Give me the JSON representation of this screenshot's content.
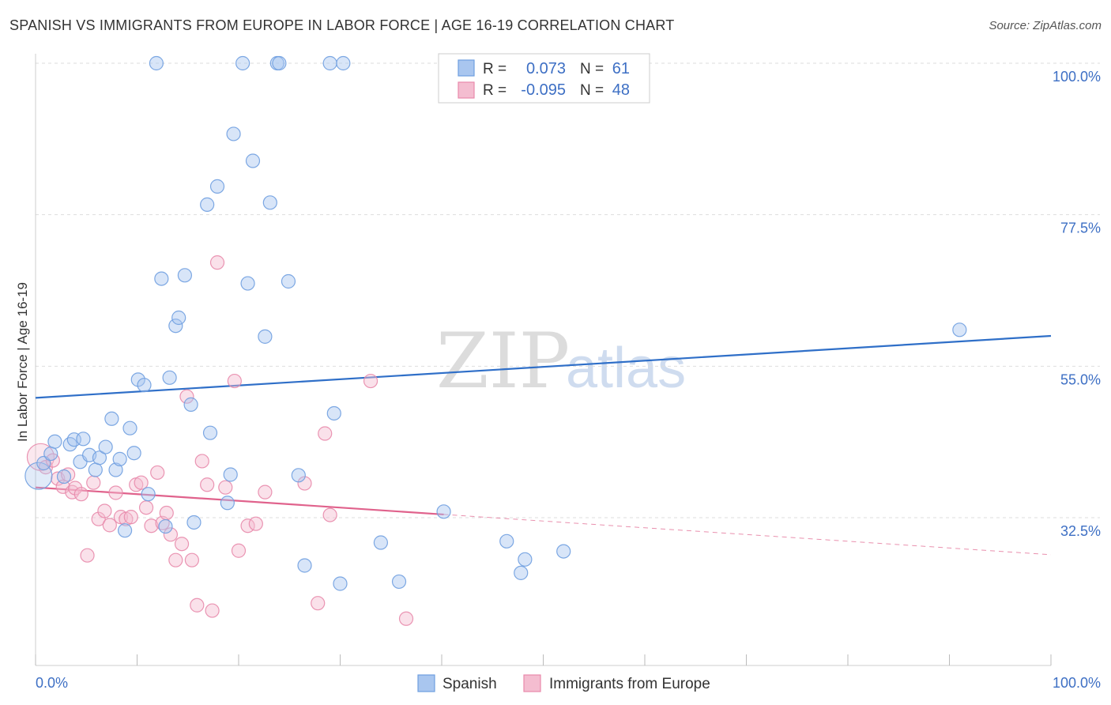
{
  "title": "SPANISH VS IMMIGRANTS FROM EUROPE IN LABOR FORCE | AGE 16-19 CORRELATION CHART",
  "source": "Source: ZipAtlas.com",
  "watermark": {
    "zip": "ZIP",
    "atlas": "atlas"
  },
  "colors": {
    "blue": "#6f9fe0",
    "blue_fill": "#a9c6ef",
    "blue_line": "#2f6fc8",
    "pink": "#e889ab",
    "pink_fill": "#f4bdd0",
    "pink_line": "#e0628c",
    "grid": "#dddddd",
    "tick_text": "#3d6fc4"
  },
  "legend": {
    "r_label": "R =",
    "n_label": "N =",
    "series": [
      {
        "r": "0.073",
        "n": "61"
      },
      {
        "r": "-0.095",
        "n": "48"
      }
    ]
  },
  "bottom_legend": [
    "Spanish",
    "Immigrants from Europe"
  ],
  "chart_data": {
    "type": "scatter",
    "title": "SPANISH VS IMMIGRANTS FROM EUROPE IN LABOR FORCE | AGE 16-19 CORRELATION CHART",
    "xlabel": "",
    "ylabel": "In Labor Force | Age 16-19",
    "xlim": [
      0,
      100
    ],
    "ylim": [
      12,
      102
    ],
    "x_tick_labels": [
      "0.0%",
      "100.0%"
    ],
    "y_ticks": [
      32.5,
      55.0,
      77.5,
      100.0
    ],
    "y_tick_labels": [
      "32.5%",
      "55.0%",
      "77.5%",
      "100.0%"
    ],
    "grid": true,
    "legend_position": "top-center",
    "series": [
      {
        "name": "Spanish",
        "r": 0.073,
        "n": 61,
        "trend": {
          "x": [
            0,
            100
          ],
          "y": [
            50.3,
            59.5
          ]
        },
        "points": [
          {
            "x": 0.3,
            "y": 38.7,
            "big": true
          },
          {
            "x": 0.8,
            "y": 40.6
          },
          {
            "x": 1.5,
            "y": 42.0
          },
          {
            "x": 1.9,
            "y": 43.8
          },
          {
            "x": 2.8,
            "y": 38.6
          },
          {
            "x": 3.4,
            "y": 43.4
          },
          {
            "x": 3.8,
            "y": 44.1
          },
          {
            "x": 4.4,
            "y": 40.8
          },
          {
            "x": 4.7,
            "y": 44.2
          },
          {
            "x": 5.3,
            "y": 41.8
          },
          {
            "x": 5.9,
            "y": 39.6
          },
          {
            "x": 6.3,
            "y": 41.4
          },
          {
            "x": 6.9,
            "y": 43.0
          },
          {
            "x": 7.5,
            "y": 47.2
          },
          {
            "x": 7.9,
            "y": 39.6
          },
          {
            "x": 8.3,
            "y": 41.2
          },
          {
            "x": 8.8,
            "y": 30.6
          },
          {
            "x": 9.3,
            "y": 45.8
          },
          {
            "x": 9.7,
            "y": 42.1
          },
          {
            "x": 10.1,
            "y": 53.0
          },
          {
            "x": 10.7,
            "y": 52.2
          },
          {
            "x": 11.1,
            "y": 36.0
          },
          {
            "x": 11.9,
            "y": 100.0
          },
          {
            "x": 12.4,
            "y": 68.0
          },
          {
            "x": 12.8,
            "y": 31.2
          },
          {
            "x": 13.2,
            "y": 53.3
          },
          {
            "x": 13.8,
            "y": 61.0
          },
          {
            "x": 14.1,
            "y": 62.2
          },
          {
            "x": 14.7,
            "y": 68.5
          },
          {
            "x": 15.3,
            "y": 49.3
          },
          {
            "x": 15.6,
            "y": 31.8
          },
          {
            "x": 16.9,
            "y": 79.0
          },
          {
            "x": 17.2,
            "y": 45.1
          },
          {
            "x": 17.9,
            "y": 81.7
          },
          {
            "x": 18.9,
            "y": 34.7
          },
          {
            "x": 19.2,
            "y": 38.9
          },
          {
            "x": 19.5,
            "y": 89.5
          },
          {
            "x": 20.4,
            "y": 100.0
          },
          {
            "x": 20.9,
            "y": 67.3
          },
          {
            "x": 21.4,
            "y": 85.5
          },
          {
            "x": 22.6,
            "y": 59.4
          },
          {
            "x": 23.1,
            "y": 79.3
          },
          {
            "x": 23.8,
            "y": 100.0
          },
          {
            "x": 24.0,
            "y": 100.0
          },
          {
            "x": 24.9,
            "y": 67.6
          },
          {
            "x": 25.9,
            "y": 38.8
          },
          {
            "x": 26.5,
            "y": 25.4
          },
          {
            "x": 29.0,
            "y": 100.0
          },
          {
            "x": 29.4,
            "y": 48.0
          },
          {
            "x": 30.0,
            "y": 22.7
          },
          {
            "x": 30.3,
            "y": 100.0
          },
          {
            "x": 34.0,
            "y": 28.8
          },
          {
            "x": 35.8,
            "y": 23.0
          },
          {
            "x": 40.2,
            "y": 33.4
          },
          {
            "x": 46.4,
            "y": 29.0
          },
          {
            "x": 47.8,
            "y": 24.3
          },
          {
            "x": 48.2,
            "y": 26.3
          },
          {
            "x": 52.0,
            "y": 27.5
          },
          {
            "x": 91.0,
            "y": 60.4
          }
        ]
      },
      {
        "name": "Immigrants from Europe",
        "r": -0.095,
        "n": 48,
        "trend": {
          "x": [
            0,
            100
          ],
          "y": [
            37.0,
            27.0
          ],
          "solid_until_x": 40.2
        },
        "points": [
          {
            "x": 0.5,
            "y": 41.5,
            "big": true
          },
          {
            "x": 1.0,
            "y": 40.0
          },
          {
            "x": 1.7,
            "y": 41.0
          },
          {
            "x": 2.2,
            "y": 38.3
          },
          {
            "x": 2.7,
            "y": 37.1
          },
          {
            "x": 3.2,
            "y": 38.9
          },
          {
            "x": 3.6,
            "y": 36.3
          },
          {
            "x": 3.9,
            "y": 36.9
          },
          {
            "x": 4.5,
            "y": 36.0
          },
          {
            "x": 5.1,
            "y": 26.9
          },
          {
            "x": 5.7,
            "y": 37.7
          },
          {
            "x": 6.2,
            "y": 32.3
          },
          {
            "x": 6.8,
            "y": 33.5
          },
          {
            "x": 7.3,
            "y": 31.4
          },
          {
            "x": 7.9,
            "y": 36.2
          },
          {
            "x": 8.4,
            "y": 32.6
          },
          {
            "x": 8.9,
            "y": 32.3
          },
          {
            "x": 9.4,
            "y": 32.6
          },
          {
            "x": 9.9,
            "y": 37.4
          },
          {
            "x": 10.4,
            "y": 37.7
          },
          {
            "x": 10.9,
            "y": 34.0
          },
          {
            "x": 11.4,
            "y": 31.3
          },
          {
            "x": 12.0,
            "y": 39.2
          },
          {
            "x": 12.5,
            "y": 31.7
          },
          {
            "x": 12.9,
            "y": 33.2
          },
          {
            "x": 13.3,
            "y": 30.0
          },
          {
            "x": 13.8,
            "y": 26.2
          },
          {
            "x": 14.4,
            "y": 28.6
          },
          {
            "x": 14.9,
            "y": 50.5
          },
          {
            "x": 15.4,
            "y": 26.2
          },
          {
            "x": 15.9,
            "y": 19.5
          },
          {
            "x": 16.4,
            "y": 40.9
          },
          {
            "x": 16.9,
            "y": 37.4
          },
          {
            "x": 17.4,
            "y": 18.7
          },
          {
            "x": 17.9,
            "y": 70.4
          },
          {
            "x": 18.7,
            "y": 37.0
          },
          {
            "x": 19.6,
            "y": 52.8
          },
          {
            "x": 20.0,
            "y": 27.6
          },
          {
            "x": 20.9,
            "y": 31.3
          },
          {
            "x": 21.7,
            "y": 31.6
          },
          {
            "x": 22.6,
            "y": 36.3
          },
          {
            "x": 26.5,
            "y": 37.6
          },
          {
            "x": 27.8,
            "y": 19.8
          },
          {
            "x": 28.5,
            "y": 45.0
          },
          {
            "x": 29.0,
            "y": 32.9
          },
          {
            "x": 33.0,
            "y": 52.8
          },
          {
            "x": 36.5,
            "y": 17.5
          }
        ]
      }
    ]
  }
}
